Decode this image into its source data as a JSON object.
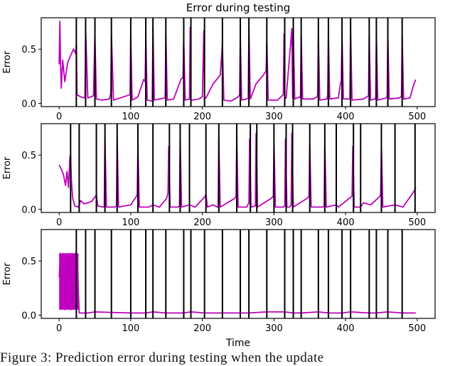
{
  "figure": {
    "title": "Error during testing",
    "xlabel": "Time",
    "caption": "Figure 3:  Prediction  error  during  testing  when  the  update"
  },
  "colors": {
    "series": "#bf00bf",
    "vlines": "#000000",
    "axes": "#000000",
    "background": "#ffffff"
  },
  "chart_data": [
    {
      "type": "line",
      "panel": 1,
      "title": "Error during testing",
      "xlabel": "",
      "ylabel": "Error",
      "xlim": [
        -25,
        525
      ],
      "ylim": [
        -0.03,
        0.79
      ],
      "xticks": [
        0,
        100,
        200,
        300,
        400,
        500
      ],
      "yticks": [
        0.0,
        0.5
      ],
      "ytick_labels": [
        "0.0",
        "0.5"
      ],
      "grid": false,
      "vlines": [
        24,
        37,
        50,
        73,
        100,
        121,
        131,
        149,
        174,
        184,
        203,
        228,
        253,
        265,
        290,
        315,
        327,
        338,
        362,
        376,
        395,
        407,
        433,
        443,
        459,
        479
      ],
      "series": [
        {
          "name": "error",
          "x": [
            0,
            1,
            2,
            3,
            5,
            8,
            12,
            16,
            20,
            23,
            24,
            25,
            30,
            36,
            37,
            40,
            48,
            50,
            52,
            60,
            70,
            72,
            73,
            76,
            90,
            99,
            100,
            102,
            110,
            118,
            120,
            121,
            123,
            130,
            131,
            133,
            140,
            148,
            149,
            151,
            160,
            170,
            173,
            174,
            176,
            182,
            183,
            184,
            186,
            195,
            200,
            202,
            203,
            205,
            215,
            225,
            227,
            228,
            230,
            240,
            250,
            252,
            253,
            255,
            262,
            264,
            265,
            267,
            275,
            285,
            289,
            290,
            292,
            305,
            313,
            314,
            315,
            317,
            325,
            326,
            327,
            329,
            336,
            337,
            338,
            340,
            355,
            360,
            361,
            362,
            364,
            374,
            375,
            376,
            378,
            390,
            393,
            394,
            395,
            397,
            405,
            406,
            407,
            409,
            425,
            432,
            433,
            435,
            441,
            442,
            443,
            445,
            457,
            458,
            459,
            461,
            475,
            477,
            478,
            479,
            481,
            490,
            495,
            498
          ],
          "y": [
            0.36,
            0.76,
            0.35,
            0.14,
            0.4,
            0.2,
            0.38,
            0.44,
            0.5,
            0.46,
            0.55,
            0.08,
            0.06,
            0.05,
            0.69,
            0.05,
            0.07,
            0.64,
            0.04,
            0.03,
            0.04,
            0.09,
            0.64,
            0.03,
            0.06,
            0.08,
            0.63,
            0.03,
            0.06,
            0.22,
            0.2,
            0.62,
            0.03,
            0.02,
            0.7,
            0.03,
            0.04,
            0.05,
            0.65,
            0.03,
            0.04,
            0.22,
            0.24,
            0.61,
            0.03,
            0.04,
            0.7,
            0.03,
            0.03,
            0.04,
            0.06,
            0.67,
            0.04,
            0.05,
            0.18,
            0.26,
            0.45,
            0.55,
            0.03,
            0.02,
            0.06,
            0.08,
            0.63,
            0.03,
            0.04,
            0.05,
            0.71,
            0.04,
            0.18,
            0.26,
            0.3,
            0.59,
            0.03,
            0.03,
            0.08,
            0.64,
            0.04,
            0.05,
            0.69,
            0.05,
            0.65,
            0.04,
            0.06,
            0.05,
            0.64,
            0.04,
            0.04,
            0.06,
            0.08,
            0.64,
            0.03,
            0.04,
            0.08,
            0.64,
            0.04,
            0.05,
            0.19,
            0.2,
            0.62,
            0.04,
            0.04,
            0.05,
            0.7,
            0.03,
            0.04,
            0.07,
            0.62,
            0.03,
            0.04,
            0.04,
            0.64,
            0.03,
            0.05,
            0.06,
            0.65,
            0.04,
            0.05,
            0.06,
            0.07,
            0.64,
            0.04,
            0.05,
            0.17,
            0.22
          ]
        }
      ]
    },
    {
      "type": "line",
      "panel": 2,
      "xlabel": "",
      "ylabel": "Error",
      "xlim": [
        -25,
        525
      ],
      "ylim": [
        -0.03,
        0.79
      ],
      "xticks": [
        0,
        100,
        200,
        300,
        400,
        500
      ],
      "yticks": [
        0.0,
        0.5
      ],
      "ytick_labels": [
        "0.0",
        "0.5"
      ],
      "grid": false,
      "vlines": [
        16,
        28,
        52,
        64,
        81,
        110,
        131,
        154,
        169,
        182,
        205,
        223,
        248,
        267,
        276,
        300,
        317,
        326,
        350,
        371,
        387,
        411,
        421,
        450,
        469,
        497
      ],
      "series": [
        {
          "name": "error",
          "x": [
            0,
            3,
            6,
            9,
            11,
            13,
            15,
            16,
            17,
            19,
            22,
            27,
            30,
            35,
            45,
            52,
            54,
            62,
            63,
            64,
            66,
            78,
            80,
            81,
            83,
            100,
            108,
            109,
            110,
            112,
            125,
            131,
            140,
            150,
            152,
            153,
            155,
            166,
            168,
            169,
            171,
            182,
            190,
            204,
            205,
            207,
            215,
            221,
            222,
            223,
            225,
            245,
            247,
            248,
            250,
            262,
            265,
            266,
            268,
            274,
            275,
            277,
            296,
            299,
            300,
            302,
            313,
            315,
            316,
            318,
            322,
            324,
            325,
            327,
            346,
            349,
            350,
            352,
            368,
            370,
            371,
            373,
            387,
            390,
            405,
            409,
            410,
            412,
            421,
            425,
            435,
            448,
            449,
            450,
            452,
            469,
            480,
            495,
            498
          ],
          "y": [
            0.41,
            0.37,
            0.32,
            0.22,
            0.35,
            0.2,
            0.48,
            0.5,
            0.28,
            0.1,
            0.03,
            0.02,
            0.08,
            0.05,
            0.07,
            0.13,
            0.03,
            0.02,
            0.02,
            0.68,
            0.02,
            0.02,
            0.03,
            0.67,
            0.02,
            0.04,
            0.12,
            0.14,
            0.6,
            0.02,
            0.02,
            0.04,
            0.02,
            0.1,
            0.15,
            0.58,
            0.02,
            0.02,
            0.03,
            0.66,
            0.02,
            0.04,
            0.02,
            0.12,
            0.14,
            0.02,
            0.04,
            0.02,
            0.03,
            0.66,
            0.02,
            0.1,
            0.12,
            0.67,
            0.02,
            0.02,
            0.06,
            0.65,
            0.02,
            0.03,
            0.7,
            0.02,
            0.1,
            0.12,
            0.61,
            0.02,
            0.02,
            0.03,
            0.65,
            0.02,
            0.02,
            0.04,
            0.7,
            0.02,
            0.1,
            0.12,
            0.61,
            0.02,
            0.02,
            0.03,
            0.61,
            0.02,
            0.04,
            0.02,
            0.1,
            0.12,
            0.58,
            0.02,
            0.02,
            0.06,
            0.04,
            0.12,
            0.14,
            0.59,
            0.02,
            0.04,
            0.02,
            0.16,
            0.2
          ]
        }
      ]
    },
    {
      "type": "line",
      "panel": 3,
      "xlabel": "Time",
      "ylabel": "Error",
      "xlim": [
        -25,
        525
      ],
      "ylim": [
        -0.03,
        0.79
      ],
      "xticks": [
        0,
        100,
        200,
        300,
        400,
        500
      ],
      "yticks": [
        0.0,
        0.5
      ],
      "ytick_labels": [
        "0.0",
        "0.5"
      ],
      "grid": false,
      "vlines": [
        24,
        37,
        50,
        73,
        100,
        121,
        131,
        149,
        174,
        184,
        203,
        228,
        253,
        265,
        290,
        315,
        327,
        338,
        362,
        376,
        395,
        407,
        433,
        443,
        459,
        479
      ],
      "band": {
        "x0": 0,
        "x1": 27,
        "ymin": 0.05,
        "ymax": 0.57
      },
      "series": [
        {
          "name": "error",
          "x": [
            0,
            2,
            4,
            6,
            8,
            10,
            12,
            14,
            16,
            18,
            20,
            22,
            24,
            26,
            27,
            28,
            30,
            40,
            50,
            73,
            100,
            121,
            131,
            149,
            174,
            184,
            203,
            228,
            253,
            265,
            290,
            315,
            327,
            338,
            362,
            376,
            395,
            407,
            433,
            443,
            459,
            479,
            498
          ],
          "y": [
            0.35,
            0.57,
            0.06,
            0.57,
            0.05,
            0.57,
            0.06,
            0.57,
            0.05,
            0.57,
            0.06,
            0.57,
            0.06,
            0.45,
            0.2,
            0.02,
            0.02,
            0.02,
            0.03,
            0.025,
            0.02,
            0.02,
            0.03,
            0.02,
            0.02,
            0.03,
            0.02,
            0.02,
            0.02,
            0.02,
            0.03,
            0.03,
            0.02,
            0.02,
            0.03,
            0.02,
            0.02,
            0.03,
            0.02,
            0.02,
            0.03,
            0.02,
            0.02
          ]
        }
      ]
    }
  ]
}
